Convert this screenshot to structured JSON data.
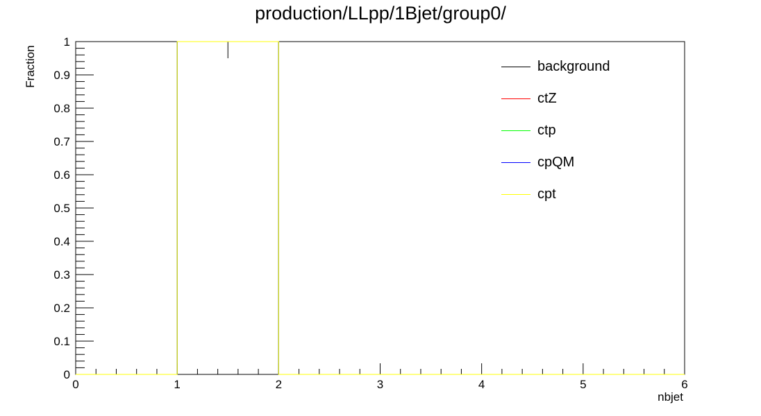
{
  "chart_data": {
    "type": "line",
    "title": "production/LLpp/1Bjet/group0/",
    "xlabel": "nbjet",
    "ylabel": "Fraction",
    "xlim": [
      0,
      6
    ],
    "ylim": [
      0,
      1
    ],
    "x_ticks": [
      "0",
      "1",
      "2",
      "3",
      "4",
      "5",
      "6"
    ],
    "y_ticks": [
      "0",
      "0.1",
      "0.2",
      "0.3",
      "0.4",
      "0.5",
      "0.6",
      "0.7",
      "0.8",
      "0.9",
      "1"
    ],
    "bin_edges": [
      0,
      1,
      2,
      3,
      4,
      5,
      6
    ],
    "grid": false,
    "legend_position": "top-right",
    "series": [
      {
        "name": "background",
        "color": "#000000",
        "values": [
          0,
          1,
          0,
          0,
          0,
          0
        ],
        "error_bars": [
          0,
          0.05,
          0,
          0,
          0,
          0
        ]
      },
      {
        "name": "ctZ",
        "color": "#ff0000",
        "values": [
          0,
          1,
          0,
          0,
          0,
          0
        ]
      },
      {
        "name": "ctp",
        "color": "#00ff00",
        "values": [
          0,
          1,
          0,
          0,
          0,
          0
        ]
      },
      {
        "name": "cpQM",
        "color": "#0000ff",
        "values": [
          0,
          1,
          0,
          0,
          0,
          0
        ]
      },
      {
        "name": "cpt",
        "color": "#ffff00",
        "values": [
          0,
          1,
          0,
          0,
          0,
          0
        ]
      }
    ]
  }
}
